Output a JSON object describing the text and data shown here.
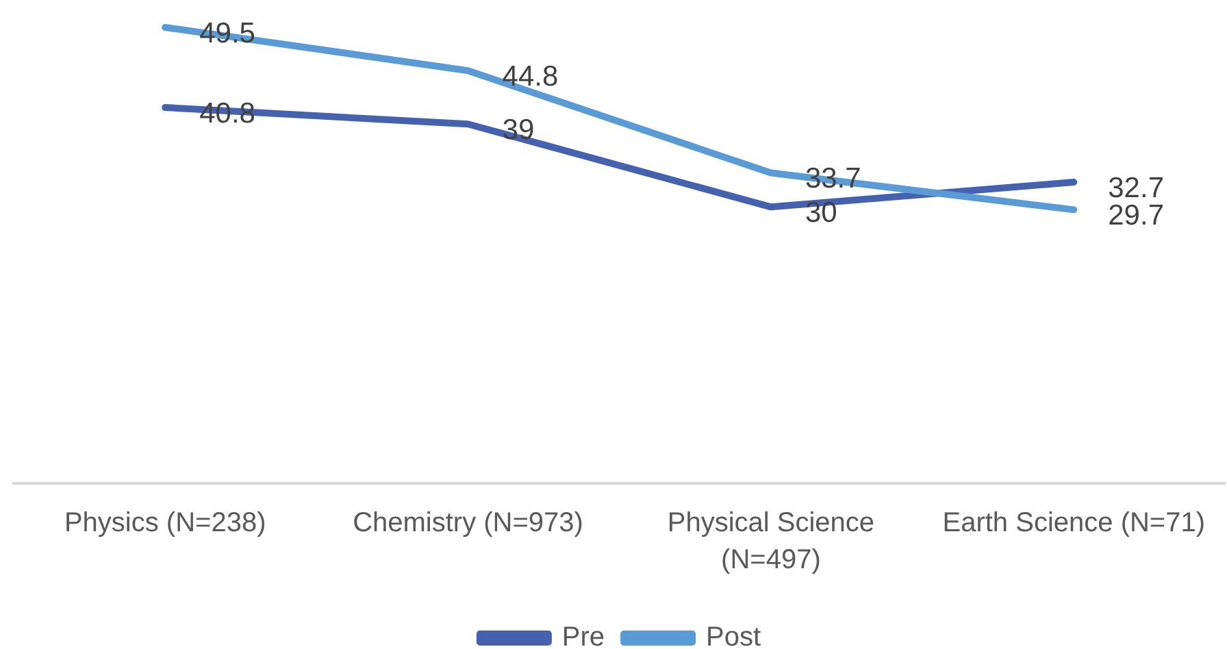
{
  "chart_data": {
    "type": "line",
    "categories": [
      "Physics (N=238)",
      "Chemistry (N=973)",
      "Physical Science (N=497)",
      "Earth Science (N=71)"
    ],
    "series": [
      {
        "name": "Pre",
        "color": "#4661ad",
        "values": [
          40.8,
          39,
          30,
          32.7
        ]
      },
      {
        "name": "Post",
        "color": "#5b9bd5",
        "values": [
          49.5,
          44.8,
          33.7,
          29.7
        ]
      }
    ],
    "data_labels": true,
    "legend": "bottom"
  }
}
